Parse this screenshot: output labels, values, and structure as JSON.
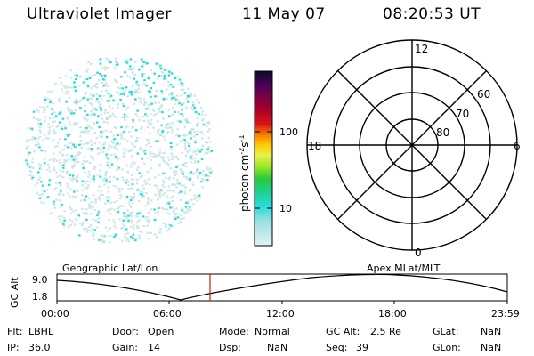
{
  "header": {
    "title": "Ultraviolet Imager",
    "date": "11 May 07",
    "time": "08:20:53 UT"
  },
  "colorbar": {
    "unit_label": "photon cm-2s-1",
    "ticks": [
      "100",
      "10"
    ]
  },
  "polar_plot": {
    "mlt_labels": [
      "12",
      "18",
      "6",
      "0"
    ],
    "mlat_labels": [
      "60",
      "70",
      "80"
    ]
  },
  "timeline": {
    "left_title": "Geographic Lat/Lon",
    "right_title": "Apex MLat/MLT",
    "ylabel": "GC Alt",
    "yticks": [
      "9.0",
      "1.8"
    ],
    "xticks": [
      "00:00",
      "06:00",
      "12:00",
      "18:00",
      "23:59"
    ]
  },
  "footer": {
    "col1": [
      {
        "label": "Flt:",
        "value": "LBHL"
      },
      {
        "label": "IP:",
        "value": "36.0"
      }
    ],
    "col2": [
      {
        "label": "Door:",
        "value": "Open"
      },
      {
        "label": "Gain:",
        "value": "14"
      }
    ],
    "col3": [
      {
        "label": "Mode:",
        "value": "Normal"
      },
      {
        "label": "Dsp:",
        "value": "NaN"
      }
    ],
    "col4": [
      {
        "label": "GC Alt:",
        "value": "2.5 Re"
      },
      {
        "label": "Seq:",
        "value": "39"
      }
    ],
    "col5": [
      {
        "label": "GLat:",
        "value": "NaN"
      },
      {
        "label": "GLon:",
        "value": "NaN"
      }
    ]
  },
  "colors": {
    "cyan_pixels": "#22dddd",
    "pale_pixels": "#cfe6e6",
    "marker": "#cc2200"
  }
}
